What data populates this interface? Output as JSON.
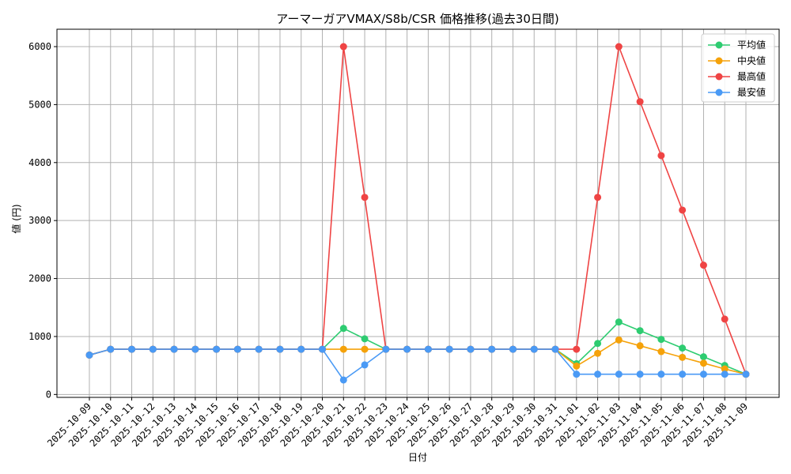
{
  "chart_data": {
    "type": "line",
    "title": "アーマーガアVMAX/S8b/CSR 価格推移(過去30日間)",
    "xlabel": "日付",
    "ylabel": "値 (円)",
    "ylim": [
      -50,
      6300
    ],
    "yticks": [
      0,
      1000,
      2000,
      3000,
      4000,
      5000,
      6000
    ],
    "grid": true,
    "legend_position": "top-right",
    "x": [
      "2025-10-09",
      "2025-10-10",
      "2025-10-11",
      "2025-10-12",
      "2025-10-13",
      "2025-10-14",
      "2025-10-15",
      "2025-10-16",
      "2025-10-17",
      "2025-10-18",
      "2025-10-19",
      "2025-10-20",
      "2025-10-21",
      "2025-10-22",
      "2025-10-23",
      "2025-10-24",
      "2025-10-25",
      "2025-10-26",
      "2025-10-27",
      "2025-10-28",
      "2025-10-29",
      "2025-10-30",
      "2025-10-31",
      "2025-11-01",
      "2025-11-02",
      "2025-11-03",
      "2025-11-04",
      "2025-11-05",
      "2025-11-06",
      "2025-11-07",
      "2025-11-08",
      "2025-11-09"
    ],
    "series": [
      {
        "name": "平均値",
        "color": "#2ecc71",
        "values": [
          680,
          780,
          780,
          780,
          780,
          780,
          780,
          780,
          780,
          780,
          780,
          780,
          1140,
          960,
          780,
          780,
          780,
          780,
          780,
          780,
          780,
          780,
          780,
          530,
          880,
          1250,
          1100,
          950,
          800,
          650,
          500,
          350
        ]
      },
      {
        "name": "中央値",
        "color": "#f5a20a",
        "values": [
          680,
          780,
          780,
          780,
          780,
          780,
          780,
          780,
          780,
          780,
          780,
          780,
          780,
          780,
          780,
          780,
          780,
          780,
          780,
          780,
          780,
          780,
          780,
          490,
          710,
          940,
          840,
          740,
          640,
          540,
          440,
          350
        ]
      },
      {
        "name": "最高値",
        "color": "#ef4444",
        "values": [
          680,
          780,
          780,
          780,
          780,
          780,
          780,
          780,
          780,
          780,
          780,
          780,
          6000,
          3400,
          780,
          780,
          780,
          780,
          780,
          780,
          780,
          780,
          780,
          780,
          3400,
          6000,
          5050,
          4120,
          3180,
          2230,
          1300,
          350
        ]
      },
      {
        "name": "最安値",
        "color": "#4a9af5",
        "values": [
          680,
          780,
          780,
          780,
          780,
          780,
          780,
          780,
          780,
          780,
          780,
          780,
          250,
          510,
          780,
          780,
          780,
          780,
          780,
          780,
          780,
          780,
          780,
          350,
          350,
          350,
          350,
          350,
          350,
          350,
          350,
          350
        ]
      }
    ]
  }
}
